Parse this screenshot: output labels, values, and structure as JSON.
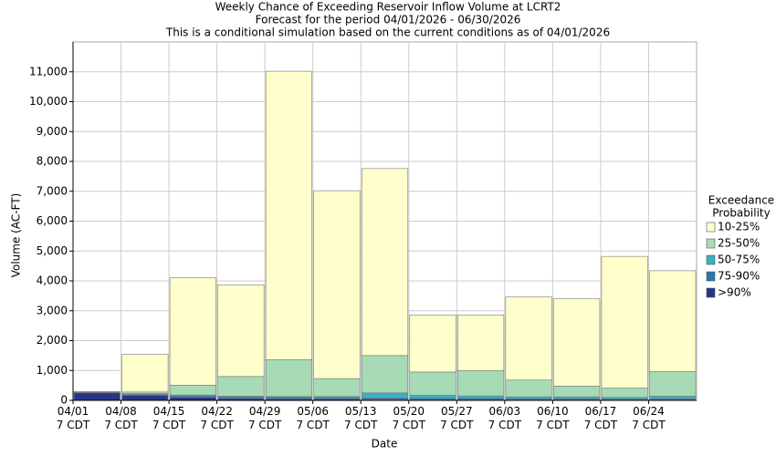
{
  "chart_data": {
    "type": "stacked_bar",
    "title": "Weekly Chance of Exceeding Reservoir Inflow Volume at LCRT2",
    "subtitle": "Forecast for the period 04/01/2026 - 06/30/2026",
    "subtitle2": "This is a conditional simulation based on the current conditions as of 04/01/2026",
    "x_label": "Date",
    "y_label": "Volume (AC-FT)",
    "legend_title": [
      "Exceedance",
      "Probability"
    ],
    "categories": [
      "04/01\n7 CDT",
      "04/08\n7 CDT",
      "04/15\n7 CDT",
      "04/22\n7 CDT",
      "04/29\n7 CDT",
      "05/06\n7 CDT",
      "05/13\n7 CDT",
      "05/20\n7 CDT",
      "05/27\n7 CDT",
      "06/03\n7 CDT",
      "06/10\n7 CDT",
      "06/17\n7 CDT",
      "06/24\n7 CDT"
    ],
    "series": [
      {
        "name": ">90%",
        "color": "#27348b",
        "values": [
          250,
          170,
          100,
          60,
          50,
          40,
          30,
          20,
          20,
          20,
          20,
          20,
          20
        ]
      },
      {
        "name": "75-90%",
        "color": "#2a78b0",
        "values": [
          20,
          30,
          50,
          50,
          50,
          50,
          50,
          50,
          50,
          40,
          40,
          30,
          30
        ]
      },
      {
        "name": "50-75%",
        "color": "#3bb0c2",
        "values": [
          10,
          20,
          30,
          30,
          30,
          40,
          170,
          100,
          80,
          60,
          60,
          50,
          90
        ]
      },
      {
        "name": "25-50%",
        "color": "#a6dbb5",
        "values": [
          5,
          60,
          330,
          660,
          1230,
          600,
          1250,
          780,
          850,
          560,
          360,
          310,
          830
        ]
      },
      {
        "name": "10-25%",
        "color": "#ffffcc",
        "values": [
          5,
          1260,
          3590,
          3070,
          9660,
          6290,
          6260,
          1910,
          1860,
          2780,
          2920,
          4410,
          3370
        ]
      }
    ],
    "ylim": [
      0,
      12000
    ],
    "yticks": [
      0,
      {
        "value": 1000,
        "label": "1,000"
      },
      {
        "value": 2000,
        "label": "2,000"
      },
      {
        "value": 3000,
        "label": "3,000"
      },
      {
        "value": 4000,
        "label": "4,000"
      },
      {
        "value": 5000,
        "label": "5,000"
      },
      {
        "value": 6000,
        "label": "6,000"
      },
      {
        "value": 7000,
        "label": "7,000"
      },
      {
        "value": 8000,
        "label": "8,000"
      },
      {
        "value": 9000,
        "label": "9,000"
      },
      {
        "value": 10000,
        "label": "10,000"
      },
      {
        "value": 11000,
        "label": "11,000"
      }
    ],
    "grid": true
  }
}
